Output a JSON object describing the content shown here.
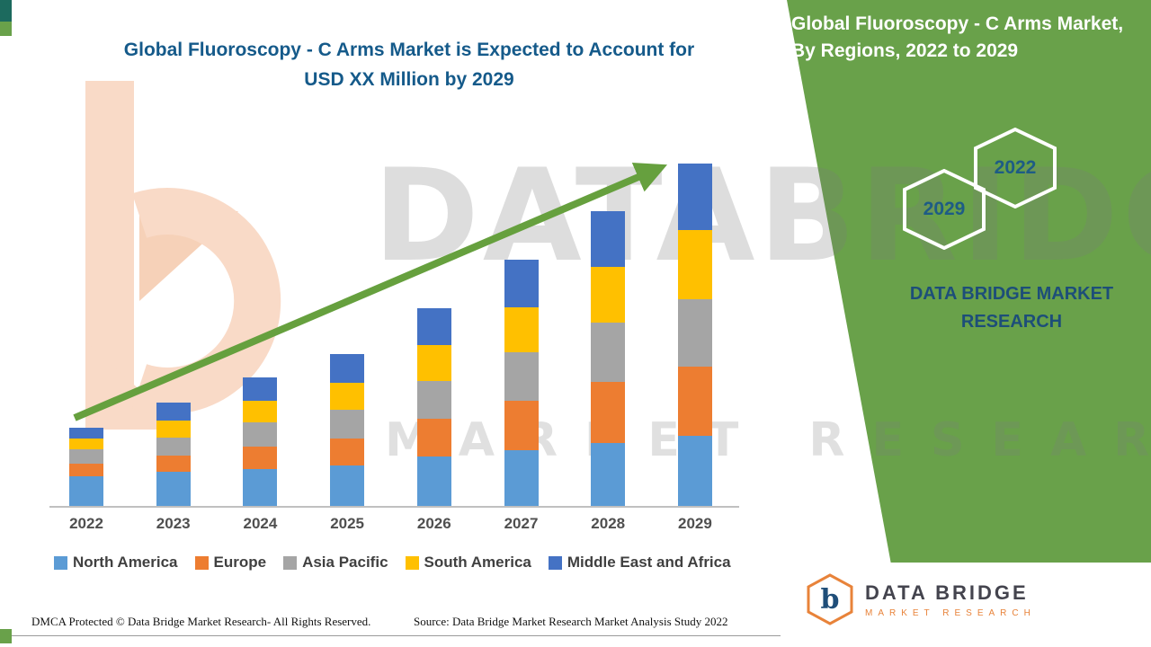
{
  "header": {
    "title_line1": "Global Fluoroscopy - C Arms Market is Expected to Account for",
    "title_line2": "USD XX Million by 2029"
  },
  "side_panel": {
    "heading": "Global Fluoroscopy - C Arms Market, By Regions, 2022 to 2029",
    "hexagon_back_year": "2029",
    "hexagon_front_year": "2022",
    "brand_line": "DATA BRIDGE MARKET RESEARCH",
    "panel_color": "#69A14A"
  },
  "watermark": {
    "line1": "DATABRIDGE",
    "line2": "MARKET RESEARCH"
  },
  "chart_data": {
    "type": "bar",
    "stacked": true,
    "title": "Global Fluoroscopy - C Arms Market is Expected to Account for USD XX Million by 2029",
    "xlabel": "",
    "ylabel": "",
    "categories": [
      "2022",
      "2023",
      "2024",
      "2025",
      "2026",
      "2027",
      "2028",
      "2029"
    ],
    "series": [
      {
        "name": "North America",
        "color": "#5B9BD5",
        "values": [
          33,
          38,
          41,
          45,
          55,
          62,
          70,
          78
        ]
      },
      {
        "name": "Europe",
        "color": "#ED7D31",
        "values": [
          14,
          18,
          25,
          30,
          42,
          55,
          68,
          77
        ]
      },
      {
        "name": "Asia Pacific",
        "color": "#A5A5A5",
        "values": [
          16,
          20,
          27,
          32,
          42,
          54,
          66,
          75
        ]
      },
      {
        "name": "South America",
        "color": "#FFC000",
        "values": [
          12,
          19,
          24,
          30,
          40,
          50,
          62,
          77
        ]
      },
      {
        "name": "Middle East and Africa",
        "color": "#4472C4",
        "values": [
          12,
          20,
          26,
          32,
          41,
          53,
          62,
          74
        ]
      }
    ],
    "totals": [
      87,
      115,
      143,
      169,
      220,
      274,
      328,
      381
    ],
    "ylim": [
      0,
      385
    ],
    "grid": false,
    "legend_position": "bottom",
    "trend_arrow": true,
    "arrow_color": "#66A03E",
    "axis_line_color": "#C0C0C0"
  },
  "footer": {
    "dmca": "DMCA Protected © Data Bridge Market Research- All Rights Reserved.",
    "source": "Source: Data Bridge Market Research Market Analysis Study 2022"
  },
  "logo": {
    "glyph": "b",
    "name": "DATA BRIDGE",
    "tagline": "MARKET RESEARCH"
  }
}
